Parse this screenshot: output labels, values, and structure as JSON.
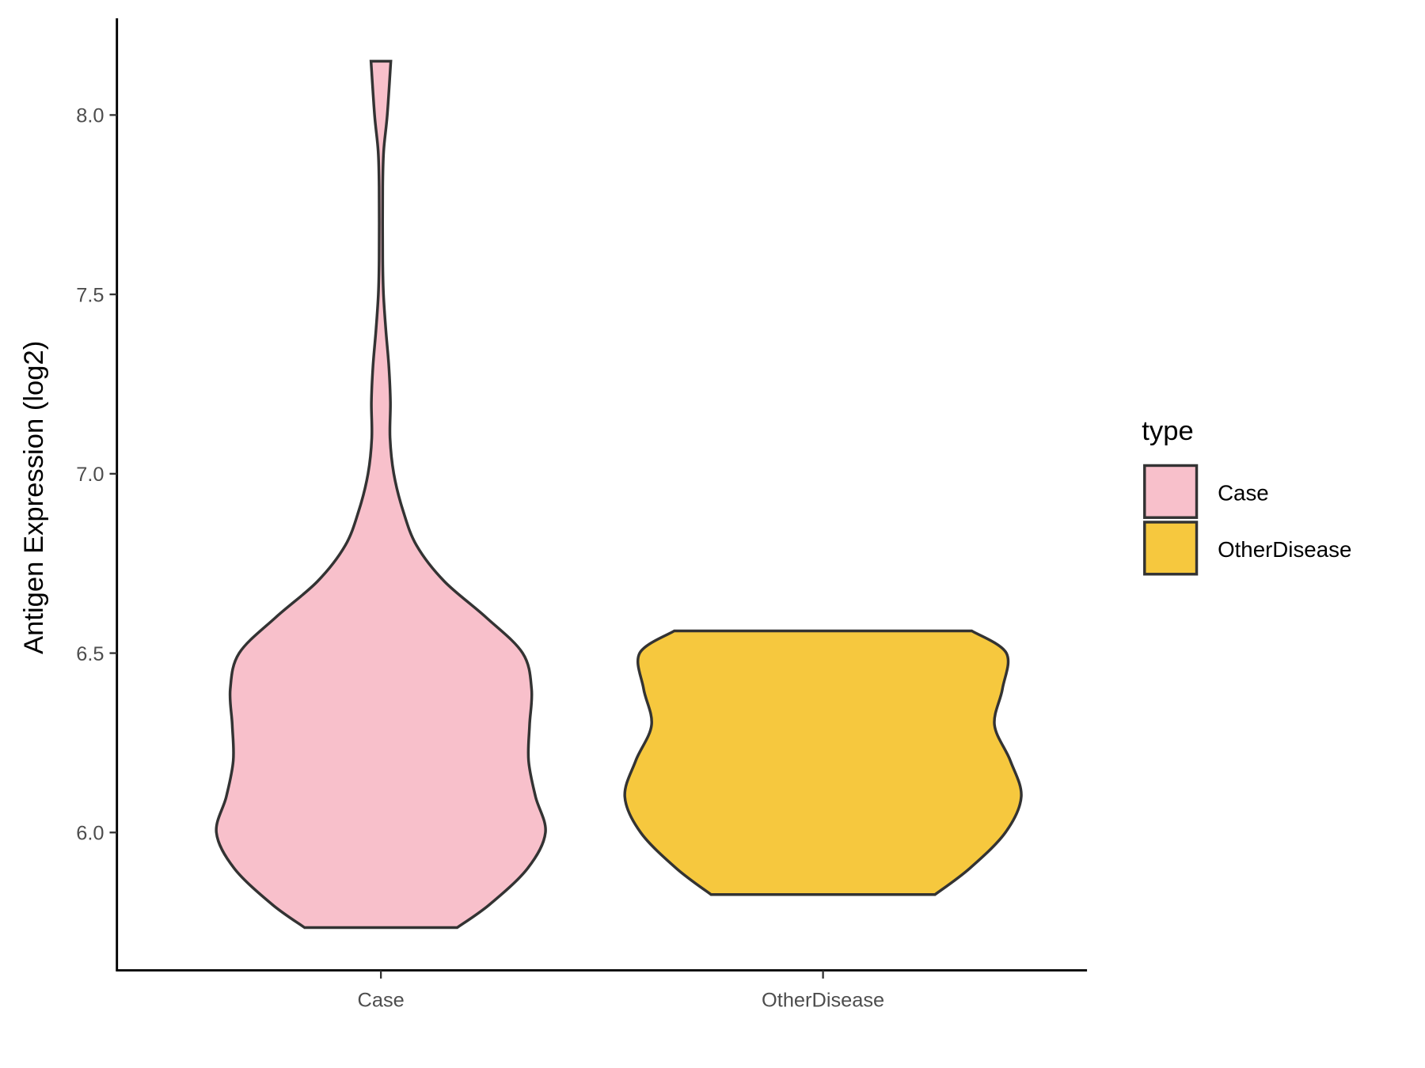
{
  "chart_data": {
    "type": "violin",
    "title": "",
    "xlabel": "",
    "ylabel": "Antigen Expression (log2)",
    "ylim": [
      5.63,
      8.27
    ],
    "yticks": [
      "6.0",
      "6.5",
      "7.0",
      "7.5",
      "8.0"
    ],
    "ytick_values": [
      6.0,
      6.5,
      7.0,
      7.5,
      8.0
    ],
    "categories": [
      "Case",
      "OtherDisease"
    ],
    "grid": false,
    "legend": {
      "title": "type",
      "position": "right",
      "entries": [
        "Case",
        "OtherDisease"
      ]
    },
    "series": [
      {
        "name": "Case",
        "color": "#F8C0CB",
        "min": 5.735,
        "max": 8.15,
        "density_profile": [
          [
            5.735,
            0.385
          ],
          [
            5.8,
            0.55
          ],
          [
            5.9,
            0.74
          ],
          [
            6.0,
            0.83
          ],
          [
            6.1,
            0.78
          ],
          [
            6.2,
            0.745
          ],
          [
            6.3,
            0.75
          ],
          [
            6.4,
            0.76
          ],
          [
            6.5,
            0.715
          ],
          [
            6.6,
            0.53
          ],
          [
            6.7,
            0.32
          ],
          [
            6.8,
            0.18
          ],
          [
            6.9,
            0.11
          ],
          [
            7.0,
            0.065
          ],
          [
            7.1,
            0.046
          ],
          [
            7.2,
            0.048
          ],
          [
            7.3,
            0.04
          ],
          [
            7.4,
            0.025
          ],
          [
            7.5,
            0.013
          ],
          [
            7.6,
            0.009
          ],
          [
            7.8,
            0.009
          ],
          [
            7.9,
            0.014
          ],
          [
            8.0,
            0.032
          ],
          [
            8.15,
            0.05
          ]
        ]
      },
      {
        "name": "OtherDisease",
        "color": "#F6C83E",
        "min": 5.827,
        "max": 6.562,
        "density_profile": [
          [
            5.827,
            0.565
          ],
          [
            5.9,
            0.74
          ],
          [
            6.0,
            0.92
          ],
          [
            6.1,
            1.0
          ],
          [
            6.2,
            0.945
          ],
          [
            6.3,
            0.865
          ],
          [
            6.4,
            0.905
          ],
          [
            6.5,
            0.925
          ],
          [
            6.562,
            0.75
          ]
        ]
      }
    ]
  }
}
